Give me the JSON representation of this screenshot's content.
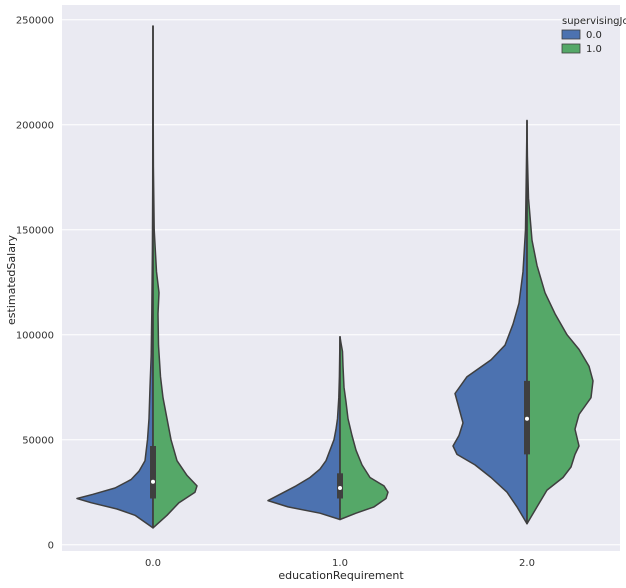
{
  "chart_data": {
    "type": "violin",
    "split": true,
    "xlabel": "educationRequirement",
    "ylabel": "estimatedSalary",
    "categories": [
      "0.0",
      "1.0",
      "2.0"
    ],
    "ylim": [
      -3000,
      257000
    ],
    "yticks": [
      0,
      50000,
      100000,
      150000,
      200000,
      250000
    ],
    "ytick_labels": [
      "0",
      "50000",
      "100000",
      "150000",
      "200000",
      "250000"
    ],
    "grid": true,
    "legend": {
      "title": "supervisingJob",
      "position": "top-right",
      "entries": [
        {
          "label": "0.0",
          "color": "#4C72B0"
        },
        {
          "label": "1.0",
          "color": "#55A868"
        }
      ]
    },
    "series": [
      {
        "name": "0.0",
        "color": "#4C72B0"
      },
      {
        "name": "1.0",
        "color": "#55A868"
      }
    ],
    "violins": [
      {
        "category": "0.0",
        "range": [
          8000,
          247000
        ],
        "median": 30000,
        "q1": 22000,
        "q3": 47000,
        "left_profile": [
          [
            8000,
            0.0
          ],
          [
            14000,
            0.18
          ],
          [
            17000,
            0.36
          ],
          [
            20000,
            0.62
          ],
          [
            22000,
            0.76
          ],
          [
            24000,
            0.6
          ],
          [
            27000,
            0.38
          ],
          [
            31000,
            0.22
          ],
          [
            35000,
            0.14
          ],
          [
            40000,
            0.08
          ],
          [
            50000,
            0.055
          ],
          [
            60000,
            0.04
          ],
          [
            75000,
            0.03
          ],
          [
            90000,
            0.018
          ],
          [
            110000,
            0.012
          ],
          [
            140000,
            0.006
          ],
          [
            170000,
            0.003
          ],
          [
            205000,
            0.002
          ],
          [
            247000,
            0.0
          ]
        ],
        "right_profile": [
          [
            8000,
            0.0
          ],
          [
            14000,
            0.14
          ],
          [
            20000,
            0.26
          ],
          [
            25000,
            0.42
          ],
          [
            28000,
            0.44
          ],
          [
            33000,
            0.34
          ],
          [
            40000,
            0.24
          ],
          [
            50000,
            0.18
          ],
          [
            60000,
            0.14
          ],
          [
            70000,
            0.1
          ],
          [
            80000,
            0.075
          ],
          [
            95000,
            0.055
          ],
          [
            110000,
            0.05
          ],
          [
            120000,
            0.06
          ],
          [
            130000,
            0.035
          ],
          [
            150000,
            0.012
          ],
          [
            180000,
            0.004
          ],
          [
            215000,
            0.001
          ],
          [
            247000,
            0.0
          ]
        ]
      },
      {
        "category": "1.0",
        "range": [
          12000,
          99000
        ],
        "median": 27000,
        "q1": 22000,
        "q3": 34000,
        "left_profile": [
          [
            12000,
            0.0
          ],
          [
            15000,
            0.2
          ],
          [
            18000,
            0.52
          ],
          [
            21000,
            0.72
          ],
          [
            24000,
            0.6
          ],
          [
            28000,
            0.44
          ],
          [
            32000,
            0.3
          ],
          [
            36000,
            0.2
          ],
          [
            40000,
            0.14
          ],
          [
            45000,
            0.1
          ],
          [
            50000,
            0.06
          ],
          [
            55000,
            0.04
          ],
          [
            60000,
            0.025
          ],
          [
            70000,
            0.012
          ],
          [
            80000,
            0.006
          ],
          [
            90000,
            0.003
          ],
          [
            99000,
            0.0
          ]
        ],
        "right_profile": [
          [
            12000,
            0.0
          ],
          [
            15000,
            0.16
          ],
          [
            18000,
            0.34
          ],
          [
            22000,
            0.46
          ],
          [
            25000,
            0.48
          ],
          [
            28000,
            0.44
          ],
          [
            32000,
            0.3
          ],
          [
            38000,
            0.22
          ],
          [
            45000,
            0.16
          ],
          [
            52000,
            0.12
          ],
          [
            60000,
            0.08
          ],
          [
            68000,
            0.06
          ],
          [
            75000,
            0.04
          ],
          [
            85000,
            0.03
          ],
          [
            92000,
            0.025
          ],
          [
            96000,
            0.01
          ],
          [
            99000,
            0.0
          ]
        ]
      },
      {
        "category": "2.0",
        "range": [
          10000,
          202000
        ],
        "median": 60000,
        "q1": 43000,
        "q3": 78000,
        "left_profile": [
          [
            10000,
            0.0
          ],
          [
            18000,
            0.1
          ],
          [
            25000,
            0.2
          ],
          [
            32000,
            0.36
          ],
          [
            38000,
            0.52
          ],
          [
            43000,
            0.7
          ],
          [
            47000,
            0.74
          ],
          [
            52000,
            0.68
          ],
          [
            58000,
            0.64
          ],
          [
            65000,
            0.68
          ],
          [
            72000,
            0.72
          ],
          [
            80000,
            0.6
          ],
          [
            88000,
            0.36
          ],
          [
            95000,
            0.22
          ],
          [
            105000,
            0.14
          ],
          [
            115000,
            0.08
          ],
          [
            130000,
            0.04
          ],
          [
            150000,
            0.015
          ],
          [
            180000,
            0.006
          ],
          [
            202000,
            0.0
          ]
        ],
        "right_profile": [
          [
            10000,
            0.0
          ],
          [
            18000,
            0.1
          ],
          [
            26000,
            0.2
          ],
          [
            32000,
            0.36
          ],
          [
            37000,
            0.44
          ],
          [
            43000,
            0.48
          ],
          [
            47000,
            0.52
          ],
          [
            55000,
            0.48
          ],
          [
            62000,
            0.52
          ],
          [
            70000,
            0.64
          ],
          [
            78000,
            0.66
          ],
          [
            85000,
            0.62
          ],
          [
            93000,
            0.52
          ],
          [
            100000,
            0.4
          ],
          [
            110000,
            0.28
          ],
          [
            120000,
            0.18
          ],
          [
            133000,
            0.1
          ],
          [
            145000,
            0.05
          ],
          [
            165000,
            0.015
          ],
          [
            185000,
            0.004
          ],
          [
            202000,
            0.0
          ]
        ]
      }
    ]
  }
}
